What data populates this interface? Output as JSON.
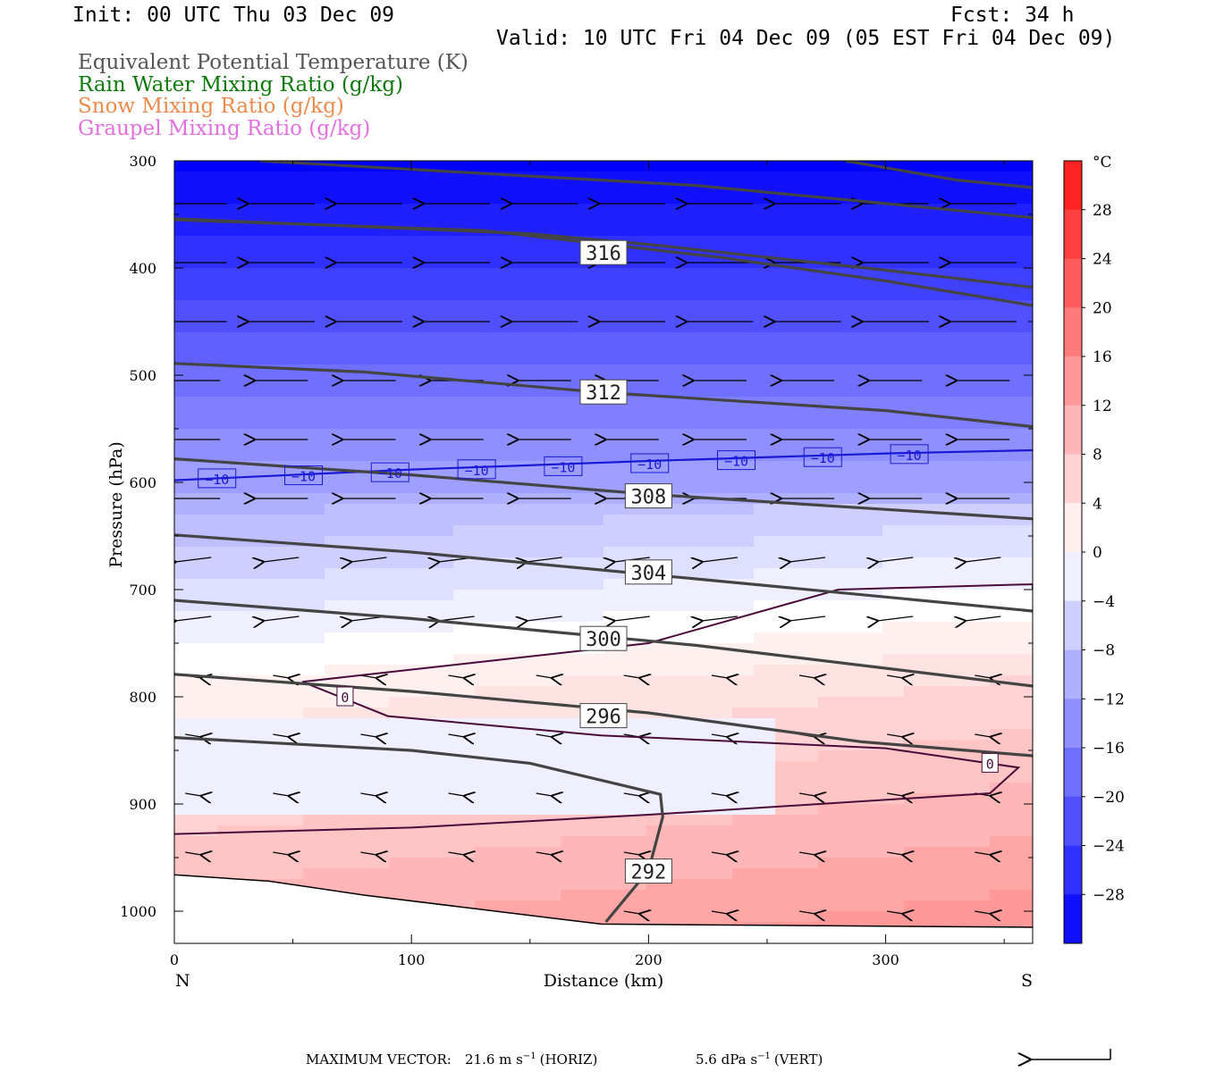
{
  "header": {
    "init": "Init: 00 UTC Thu 03 Dec 09",
    "fcst": "Fcst:   34 h",
    "valid": "Valid: 10 UTC Fri 04 Dec 09 (05 EST Fri 04 Dec 09)"
  },
  "fields": [
    {
      "label": "Equivalent Potential Temperature (K)",
      "color": "#555555"
    },
    {
      "label": "Rain Water Mixing Ratio (g/kg)",
      "color": "#0b7a0b"
    },
    {
      "label": "Snow Mixing Ratio (g/kg)",
      "color": "#f08a4b"
    },
    {
      "label": "Graupel Mixing Ratio (g/kg)",
      "color": "#e56fe0"
    }
  ],
  "chart_data": {
    "type": "heatmap",
    "xlabel": "Distance (km)",
    "ylabel": "Pressure (hPa)",
    "xlim": [
      0,
      362
    ],
    "ylim": [
      1030,
      300
    ],
    "x_ticks": [
      "0",
      "100",
      "200",
      "300"
    ],
    "x_tick_values": [
      0,
      100,
      200,
      300
    ],
    "y_ticks": [
      "300",
      "400",
      "500",
      "600",
      "700",
      "800",
      "900",
      "1000"
    ],
    "y_tick_values": [
      300,
      400,
      500,
      600,
      700,
      800,
      900,
      1000
    ],
    "end_labels": {
      "left": "N",
      "right": "S"
    },
    "colorbar": {
      "unit": "°C",
      "tick_labels": [
        "28",
        "24",
        "20",
        "16",
        "12",
        "8",
        "4",
        "0",
        "−4",
        "−8",
        "−12",
        "−16",
        "−20",
        "−24",
        "−28"
      ],
      "levels_top_to_bottom": [
        32,
        28,
        24,
        20,
        16,
        12,
        8,
        4,
        0,
        -4,
        -8,
        -12,
        -16,
        -20,
        -24,
        -28,
        -32
      ]
    },
    "theta_e_contours": [
      {
        "label": "316",
        "label_at": [
          181,
          386
        ],
        "points": [
          [
            36,
            300
          ],
          [
            220,
            323
          ],
          [
            362,
            353
          ]
        ]
      },
      {
        "label": "316",
        "label_at": [
          181,
          386
        ],
        "points": [
          [
            0,
            354
          ],
          [
            150,
            368
          ],
          [
            200,
            378
          ],
          [
            300,
            402
          ],
          [
            362,
            418
          ]
        ]
      },
      {
        "label": "316",
        "label_at": [
          181,
          386
        ],
        "points": [
          [
            0,
            355
          ],
          [
            130,
            365
          ],
          [
            230,
            390
          ],
          [
            300,
            412
          ],
          [
            362,
            435
          ]
        ]
      },
      {
        "label": "316",
        "label_at": [
          181,
          386
        ],
        "points": [
          [
            283,
            300
          ],
          [
            330,
            318
          ],
          [
            362,
            325
          ]
        ]
      },
      {
        "label": "312",
        "label_at": [
          181,
          516
        ],
        "points": [
          [
            0,
            489
          ],
          [
            80,
            497
          ],
          [
            180,
            516
          ],
          [
            300,
            533
          ],
          [
            362,
            548
          ]
        ]
      },
      {
        "label": "308",
        "label_at": [
          200,
          613
        ],
        "points": [
          [
            0,
            578
          ],
          [
            100,
            593
          ],
          [
            200,
            611
          ],
          [
            362,
            634
          ]
        ]
      },
      {
        "label": "304",
        "label_at": [
          200,
          684
        ],
        "points": [
          [
            0,
            649
          ],
          [
            100,
            665
          ],
          [
            220,
            690
          ],
          [
            362,
            720
          ]
        ]
      },
      {
        "label": "300",
        "label_at": [
          181,
          746
        ],
        "points": [
          [
            0,
            710
          ],
          [
            100,
            727
          ],
          [
            220,
            752
          ],
          [
            362,
            790
          ]
        ]
      },
      {
        "label": "296",
        "label_at": [
          181,
          818
        ],
        "points": [
          [
            0,
            779
          ],
          [
            100,
            795
          ],
          [
            200,
            815
          ],
          [
            290,
            842
          ],
          [
            362,
            855
          ]
        ]
      },
      {
        "label": "292",
        "label_at": [
          200,
          963
        ],
        "points": [
          [
            0,
            838
          ],
          [
            100,
            850
          ],
          [
            150,
            862
          ],
          [
            205,
            891
          ],
          [
            206,
            912
          ],
          [
            200,
            962
          ],
          [
            182,
            1010
          ]
        ]
      }
    ],
    "isotherms": [
      {
        "label": "−10",
        "values": [
          [
            0,
            598
          ],
          [
            100,
            588
          ],
          [
            200,
            580
          ],
          [
            300,
            573
          ],
          [
            362,
            570
          ]
        ]
      },
      {
        "label": "0",
        "values": [
          [
            54,
            786
          ],
          [
            200,
            750
          ],
          [
            280,
            700
          ],
          [
            362,
            695
          ],
          [
            362,
            700
          ]
        ]
      },
      {
        "label": "0",
        "values": [
          [
            54,
            786
          ],
          [
            90,
            818
          ],
          [
            180,
            836
          ],
          [
            300,
            848
          ],
          [
            356,
            866
          ],
          [
            344,
            890
          ],
          [
            200,
            910
          ],
          [
            100,
            922
          ],
          [
            0,
            928
          ]
        ]
      }
    ],
    "terrain": [
      [
        0,
        966
      ],
      [
        40,
        972
      ],
      [
        80,
        985
      ],
      [
        180,
        1012
      ],
      [
        362,
        1015
      ]
    ],
    "max_vector": {
      "horiz": "21.6 m s",
      "vert": "5.6 dPa s"
    }
  },
  "footer": {
    "max_vector_label": "MAXIMUM VECTOR:",
    "horiz_value": "21.6 m s",
    "horiz_unit": "(HORIZ)",
    "vert_value": "5.6 dPa s",
    "vert_unit": "(VERT)",
    "exp": "−1"
  }
}
